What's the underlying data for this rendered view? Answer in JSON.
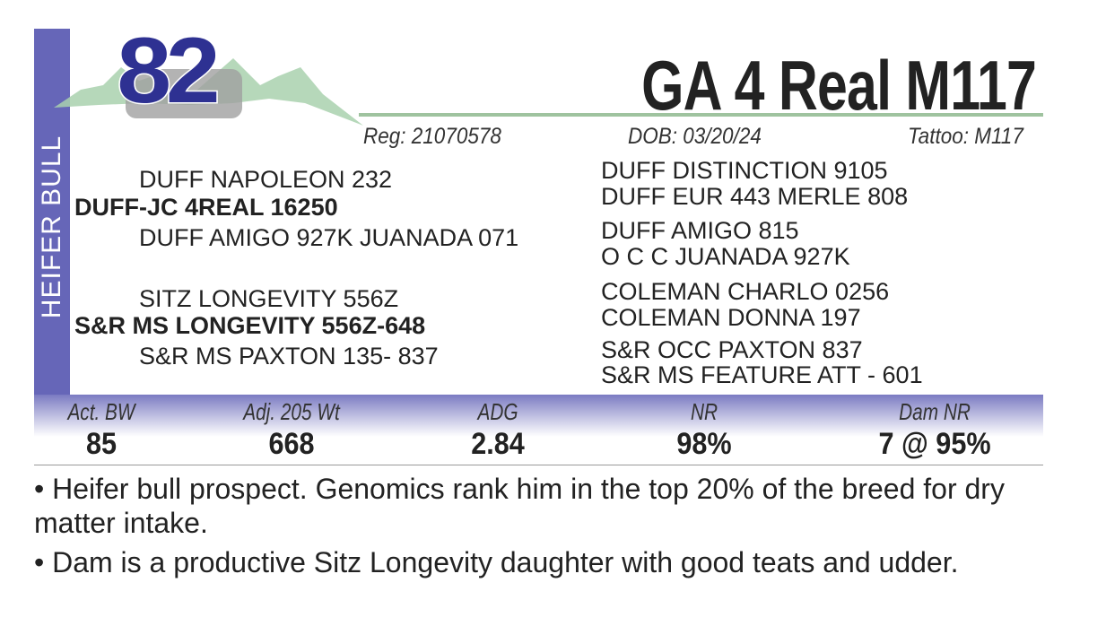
{
  "lot": {
    "number": "82",
    "side_label": "HEIFER BULL",
    "name": "GA 4 Real M117"
  },
  "meta": {
    "reg": "Reg: 21070578",
    "dob": "DOB:  03/20/24",
    "tattoo": "Tattoo:  M117"
  },
  "pedigree": {
    "left": [
      "DUFF NAPOLEON 232",
      "DUFF-JC 4REAL 16250",
      "DUFF AMIGO 927K JUANADA 071",
      "SITZ LONGEVITY 556Z",
      "S&R MS LONGEVITY 556Z-648",
      "S&R MS PAXTON 135- 837"
    ],
    "right": [
      "DUFF DISTINCTION 9105",
      "DUFF EUR 443 MERLE 808",
      "DUFF AMIGO 815",
      "O C C JUANADA 927K",
      "COLEMAN CHARLO 0256",
      "COLEMAN DONNA 197",
      "S&R OCC PAXTON 837",
      "S&R MS FEATURE ATT - 601"
    ]
  },
  "stats": [
    {
      "label": "Act. BW",
      "value": "85"
    },
    {
      "label": "Adj. 205 Wt",
      "value": "668"
    },
    {
      "label": "ADG",
      "value": "2.84"
    },
    {
      "label": "NR",
      "value": "98%"
    },
    {
      "label": "Dam NR",
      "value": "7 @ 95%"
    }
  ],
  "notes": [
    "• Heifer bull prospect.  Genomics rank him in the top 20% of the breed for dry matter intake.",
    "• Dam is a productive Sitz Longevity daughter with good teats and udder."
  ],
  "colors": {
    "accent": "#6666b8",
    "lot": "#2e3192",
    "rule": "#9fc39f"
  }
}
